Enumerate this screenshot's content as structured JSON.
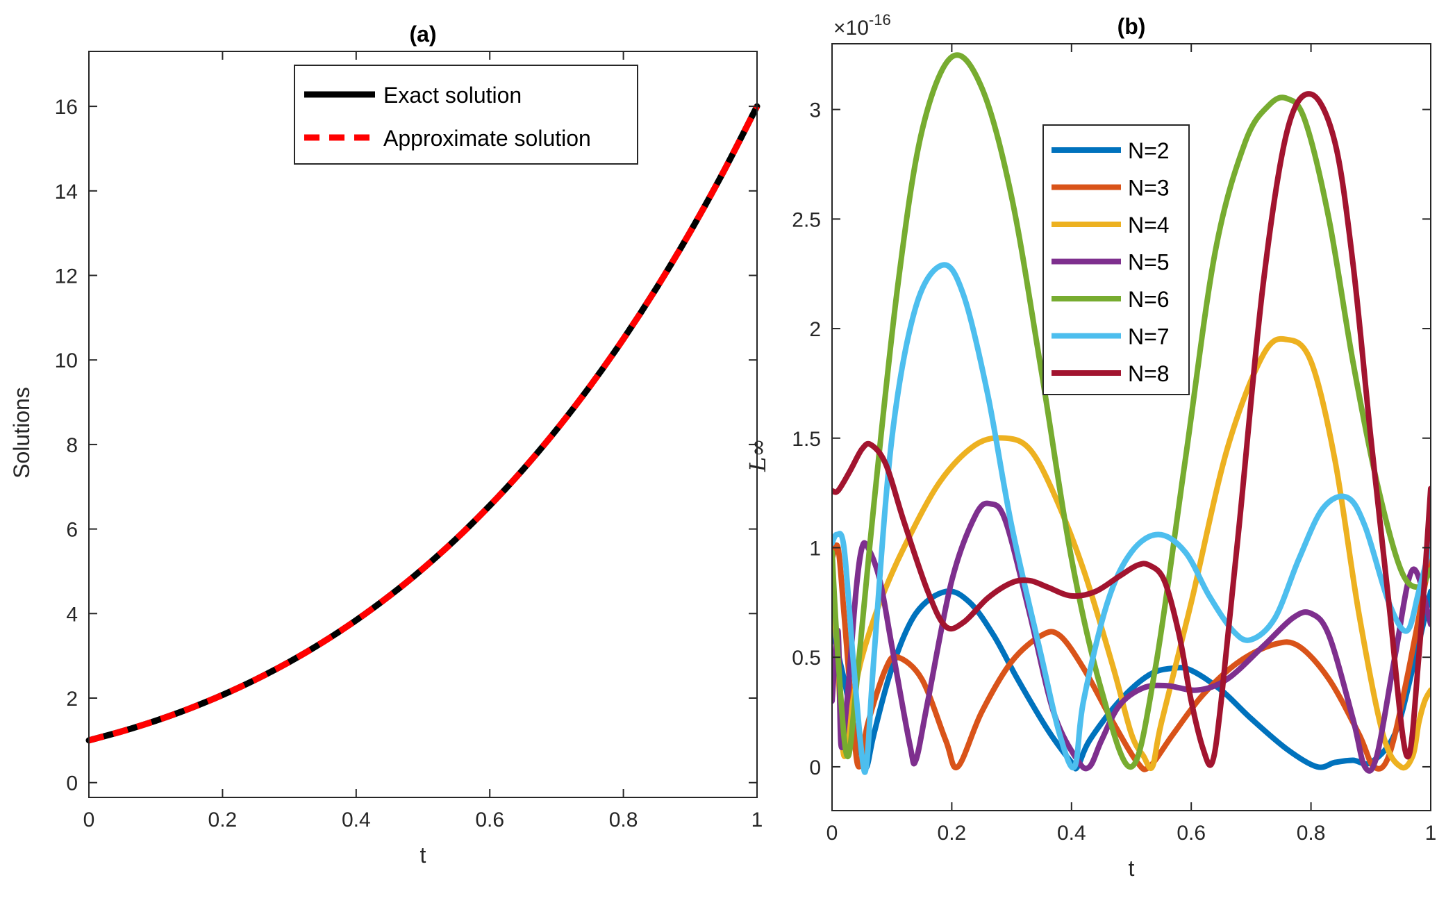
{
  "chart_data": [
    {
      "type": "line",
      "panel": "a",
      "title": "(a)",
      "xlabel": "t",
      "ylabel": "Solutions",
      "xlim": [
        0,
        1
      ],
      "ylim": [
        -0.35,
        17.3
      ],
      "xticks": [
        0,
        0.2,
        0.4,
        0.6,
        0.8,
        1
      ],
      "xtick_labels": [
        "0",
        "0.2",
        "0.4",
        "0.6",
        "0.8",
        "1"
      ],
      "yticks": [
        0,
        2,
        4,
        6,
        8,
        10,
        12,
        14,
        16
      ],
      "ytick_labels": [
        "0",
        "2",
        "4",
        "6",
        "8",
        "10",
        "12",
        "14",
        "16"
      ],
      "legend_position": "top-center",
      "series": [
        {
          "name": "Exact solution",
          "color": "#000000",
          "style": "solid",
          "function": "(1+t)^4",
          "x": [
            0,
            0.05,
            0.1,
            0.15,
            0.2,
            0.25,
            0.3,
            0.35,
            0.4,
            0.45,
            0.5,
            0.55,
            0.6,
            0.65,
            0.7,
            0.75,
            0.8,
            0.85,
            0.9,
            0.95,
            1
          ],
          "y": [
            1.0,
            1.2155,
            1.4641,
            1.749,
            2.0736,
            2.4414,
            2.8561,
            3.3215,
            3.8416,
            4.4205,
            5.0625,
            5.772,
            6.5536,
            7.412,
            8.3521,
            9.3789,
            10.4976,
            11.7135,
            13.0321,
            14.459,
            16.0
          ]
        },
        {
          "name": "Approximate solution",
          "color": "#ff0000",
          "style": "dashed",
          "function": "(1+t)^4",
          "x": [
            0,
            0.05,
            0.1,
            0.15,
            0.2,
            0.25,
            0.3,
            0.35,
            0.4,
            0.45,
            0.5,
            0.55,
            0.6,
            0.65,
            0.7,
            0.75,
            0.8,
            0.85,
            0.9,
            0.95,
            1
          ],
          "y": [
            1.0,
            1.2155,
            1.4641,
            1.749,
            2.0736,
            2.4414,
            2.8561,
            3.3215,
            3.8416,
            4.4205,
            5.0625,
            5.772,
            6.5536,
            7.412,
            8.3521,
            9.3789,
            10.4976,
            11.7135,
            13.0321,
            14.459,
            16.0
          ]
        }
      ]
    },
    {
      "type": "line",
      "panel": "b",
      "title": "(b)",
      "xlabel": "t",
      "ylabel": "L∞",
      "exponent_label": "×10",
      "exponent_power": "-16",
      "xlim": [
        0,
        1
      ],
      "ylim": [
        -0.2,
        3.3
      ],
      "xticks": [
        0,
        0.2,
        0.4,
        0.6,
        0.8,
        1
      ],
      "xtick_labels": [
        "0",
        "0.2",
        "0.4",
        "0.6",
        "0.8",
        "1"
      ],
      "yticks": [
        0,
        0.5,
        1,
        1.5,
        2,
        2.5,
        3
      ],
      "ytick_labels": [
        "0",
        "0.5",
        "1",
        "1.5",
        "2",
        "2.5",
        "3"
      ],
      "legend_position": "upper-center",
      "series": [
        {
          "name": "N=2",
          "color": "#0072bd",
          "x": [
            0,
            0.02,
            0.035,
            0.05,
            0.058,
            0.07,
            0.1,
            0.14,
            0.19,
            0.23,
            0.27,
            0.31,
            0.36,
            0.4,
            0.41,
            0.43,
            0.48,
            0.53,
            0.57,
            0.6,
            0.65,
            0.7,
            0.76,
            0.81,
            0.84,
            0.87,
            0.9,
            0.94,
            0.97,
            1
          ],
          "y": [
            0.63,
            0.4,
            0.2,
            0.05,
            0.0,
            0.15,
            0.45,
            0.7,
            0.8,
            0.75,
            0.6,
            0.4,
            0.17,
            0.02,
            0.0,
            0.12,
            0.3,
            0.42,
            0.45,
            0.44,
            0.35,
            0.22,
            0.08,
            0.0,
            0.02,
            0.03,
            0.02,
            0.15,
            0.45,
            0.8
          ]
        },
        {
          "name": "N=3",
          "color": "#d95319",
          "x": [
            0,
            0.01,
            0.02,
            0.035,
            0.045,
            0.06,
            0.09,
            0.11,
            0.15,
            0.19,
            0.21,
            0.25,
            0.3,
            0.35,
            0.38,
            0.42,
            0.47,
            0.51,
            0.53,
            0.57,
            0.62,
            0.68,
            0.74,
            0.78,
            0.83,
            0.88,
            0.905,
            0.93,
            0.96,
            1
          ],
          "y": [
            0.95,
            1.0,
            0.7,
            0.2,
            0.0,
            0.2,
            0.45,
            0.5,
            0.4,
            0.12,
            0.0,
            0.25,
            0.48,
            0.6,
            0.6,
            0.45,
            0.2,
            0.02,
            0.0,
            0.15,
            0.33,
            0.48,
            0.56,
            0.55,
            0.4,
            0.15,
            0.0,
            0.05,
            0.4,
            0.97
          ]
        },
        {
          "name": "N=4",
          "color": "#edb120",
          "x": [
            0,
            0.01,
            0.02,
            0.035,
            0.05,
            0.08,
            0.12,
            0.18,
            0.24,
            0.29,
            0.33,
            0.37,
            0.42,
            0.47,
            0.5,
            0.52,
            0.535,
            0.55,
            0.6,
            0.66,
            0.72,
            0.76,
            0.8,
            0.84,
            0.88,
            0.92,
            0.95,
            0.97,
            0.98,
            0.99,
            1
          ],
          "y": [
            0.9,
            0.45,
            0.05,
            0.3,
            0.5,
            0.75,
            1.0,
            1.3,
            1.47,
            1.5,
            1.45,
            1.25,
            0.9,
            0.45,
            0.15,
            0.05,
            0.0,
            0.2,
            0.75,
            1.45,
            1.88,
            1.95,
            1.85,
            1.4,
            0.7,
            0.15,
            0.0,
            0.05,
            0.2,
            0.3,
            0.35
          ]
        },
        {
          "name": "N=5",
          "color": "#7e2f8e",
          "x": [
            0,
            0.01,
            0.015,
            0.025,
            0.04,
            0.05,
            0.06,
            0.08,
            0.1,
            0.13,
            0.14,
            0.16,
            0.2,
            0.24,
            0.265,
            0.29,
            0.33,
            0.37,
            0.41,
            0.43,
            0.45,
            0.48,
            0.52,
            0.56,
            0.61,
            0.66,
            0.72,
            0.77,
            0.8,
            0.83,
            0.87,
            0.89,
            0.91,
            0.94,
            0.97,
            1
          ],
          "y": [
            0.3,
            0.62,
            0.1,
            0.3,
            0.8,
            1.0,
            1.0,
            0.85,
            0.55,
            0.1,
            0.03,
            0.3,
            0.85,
            1.15,
            1.2,
            1.12,
            0.7,
            0.25,
            0.03,
            0.0,
            0.12,
            0.28,
            0.36,
            0.37,
            0.35,
            0.4,
            0.55,
            0.68,
            0.7,
            0.6,
            0.22,
            0.0,
            0.05,
            0.5,
            0.9,
            0.65
          ]
        },
        {
          "name": "N=6",
          "color": "#77ac30",
          "x": [
            0,
            0.01,
            0.025,
            0.04,
            0.07,
            0.11,
            0.15,
            0.2,
            0.25,
            0.3,
            0.35,
            0.4,
            0.45,
            0.5,
            0.54,
            0.59,
            0.64,
            0.69,
            0.73,
            0.76,
            0.79,
            0.83,
            0.87,
            0.91,
            0.95,
            0.98,
            1
          ],
          "y": [
            0.98,
            0.5,
            0.05,
            0.35,
            1.2,
            2.2,
            2.9,
            3.24,
            3.1,
            2.6,
            1.8,
            0.95,
            0.35,
            0.0,
            0.45,
            1.4,
            2.35,
            2.85,
            3.02,
            3.05,
            2.95,
            2.5,
            1.85,
            1.3,
            0.9,
            0.82,
            0.9
          ]
        },
        {
          "name": "N=7",
          "color": "#4dbeee",
          "x": [
            0,
            0.008,
            0.02,
            0.035,
            0.05,
            0.058,
            0.07,
            0.1,
            0.14,
            0.185,
            0.22,
            0.26,
            0.3,
            0.35,
            0.38,
            0.405,
            0.42,
            0.46,
            0.5,
            0.545,
            0.59,
            0.63,
            0.67,
            0.7,
            0.74,
            0.78,
            0.82,
            0.86,
            0.89,
            0.93,
            0.96,
            0.98,
            1
          ],
          "y": [
            1.02,
            1.06,
            1.0,
            0.5,
            0.05,
            0.02,
            0.5,
            1.5,
            2.1,
            2.29,
            2.15,
            1.7,
            1.1,
            0.5,
            0.15,
            0.0,
            0.3,
            0.75,
            0.98,
            1.06,
            0.98,
            0.78,
            0.62,
            0.58,
            0.68,
            0.95,
            1.18,
            1.23,
            1.1,
            0.75,
            0.62,
            0.8,
            1.02
          ]
        },
        {
          "name": "N=8",
          "color": "#a2142f",
          "x": [
            0,
            0.01,
            0.03,
            0.05,
            0.065,
            0.09,
            0.12,
            0.16,
            0.19,
            0.22,
            0.26,
            0.3,
            0.33,
            0.36,
            0.4,
            0.44,
            0.48,
            0.51,
            0.53,
            0.555,
            0.58,
            0.6,
            0.62,
            0.635,
            0.65,
            0.68,
            0.72,
            0.76,
            0.8,
            0.84,
            0.87,
            0.9,
            0.93,
            0.96,
            0.98,
            1
          ],
          "y": [
            1.26,
            1.26,
            1.35,
            1.45,
            1.47,
            1.38,
            1.12,
            0.8,
            0.64,
            0.66,
            0.77,
            0.84,
            0.85,
            0.82,
            0.78,
            0.8,
            0.87,
            0.92,
            0.92,
            0.85,
            0.6,
            0.3,
            0.08,
            0.02,
            0.3,
            1.1,
            2.2,
            2.9,
            3.07,
            2.85,
            2.3,
            1.5,
            0.75,
            0.05,
            0.5,
            1.27
          ]
        }
      ]
    }
  ]
}
